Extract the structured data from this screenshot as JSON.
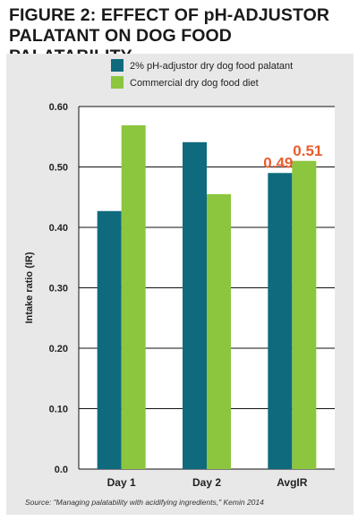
{
  "figure": {
    "title_line1": "FIGURE 2: EFFECT OF pH-ADJUSTOR",
    "title_line2": "PALATANT ON DOG FOOD PALATABILITY",
    "source": "Source: \"Managing palatability with acidifying ingredients,\" Kemin 2014"
  },
  "chart_data": {
    "type": "bar",
    "categories": [
      "Day 1",
      "Day 2",
      "AvgIR"
    ],
    "series": [
      {
        "name": "2% pH-adjustor dry dog food palatant",
        "values": [
          0.427,
          0.541,
          0.49
        ],
        "color": "#0f6a7e"
      },
      {
        "name": "Commercial dry dog food diet",
        "values": [
          0.569,
          0.455,
          0.51
        ],
        "color": "#8cc63f"
      }
    ],
    "ylabel": "Intake ratio (IR)",
    "ylim": [
      0,
      0.6
    ],
    "yticks": [
      "0.0",
      "0.10",
      "0.20",
      "0.30",
      "0.40",
      "0.50",
      "0.60"
    ],
    "grid": true,
    "legend_position": "top",
    "highlight_category": "AvgIR",
    "highlight_color": "#e95d2e",
    "data_labels": [
      {
        "category": "AvgIR",
        "series": 0,
        "text": "0.49"
      },
      {
        "category": "AvgIR",
        "series": 1,
        "text": "0.51"
      }
    ]
  }
}
